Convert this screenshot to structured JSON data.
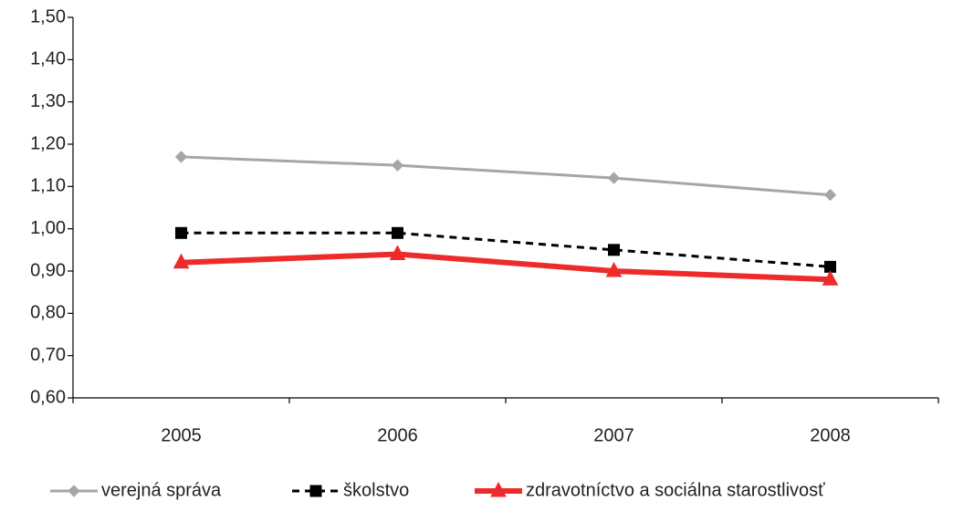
{
  "chart_data": {
    "type": "line",
    "categories": [
      "2005",
      "2006",
      "2007",
      "2008"
    ],
    "series": [
      {
        "name": "verejná správa",
        "color": "#a6a6a6",
        "marker": "diamond",
        "dash": false,
        "width": 3,
        "values": [
          1.17,
          1.15,
          1.12,
          1.08
        ]
      },
      {
        "name": "školstvo",
        "color": "#000000",
        "marker": "square",
        "dash": true,
        "width": 3,
        "values": [
          0.99,
          0.99,
          0.95,
          0.91
        ]
      },
      {
        "name": "zdravotníctvo a sociálna starostlivosť",
        "color": "#ee2a2a",
        "marker": "triangle",
        "dash": false,
        "width": 6,
        "values": [
          0.92,
          0.94,
          0.9,
          0.88
        ]
      }
    ],
    "ylim": [
      0.6,
      1.5
    ],
    "yticks": [
      {
        "value": 0.6,
        "label": "0,60"
      },
      {
        "value": 0.7,
        "label": "0,70"
      },
      {
        "value": 0.8,
        "label": "0,80"
      },
      {
        "value": 0.9,
        "label": "0,90"
      },
      {
        "value": 1.0,
        "label": "1,00"
      },
      {
        "value": 1.1,
        "label": "1,10"
      },
      {
        "value": 1.2,
        "label": "1,20"
      },
      {
        "value": 1.3,
        "label": "1,30"
      },
      {
        "value": 1.4,
        "label": "1,40"
      },
      {
        "value": 1.5,
        "label": "1,50"
      }
    ],
    "grid": false,
    "legend": "bottom"
  }
}
